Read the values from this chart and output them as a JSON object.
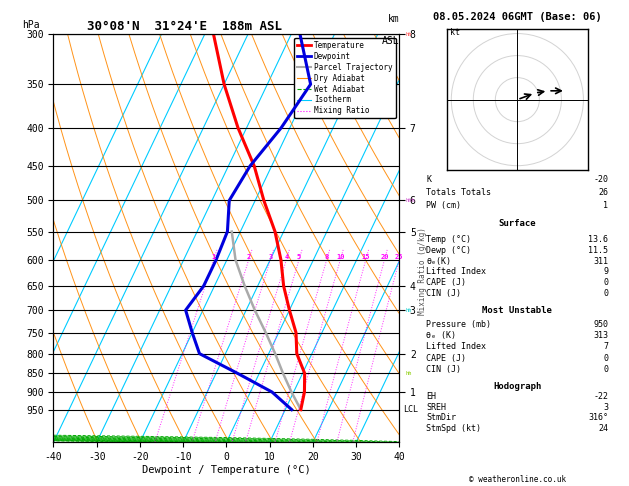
{
  "title": "30°08'N  31°24'E  188m ASL",
  "date_str": "08.05.2024 06GMT (Base: 06)",
  "xlabel": "Dewpoint / Temperature (°C)",
  "ylabel_left": "hPa",
  "pressure_levels": [
    300,
    350,
    400,
    450,
    500,
    550,
    600,
    650,
    700,
    750,
    800,
    850,
    900,
    950
  ],
  "pressure_min": 300,
  "pressure_max": 1050,
  "temp_min": -40,
  "temp_max": 40,
  "temp_data": {
    "pressure": [
      950,
      900,
      850,
      800,
      750,
      700,
      650,
      600,
      550,
      500,
      450,
      400,
      350,
      300
    ],
    "temp": [
      13.6,
      12.5,
      10.5,
      6.5,
      4.0,
      0.0,
      -4.0,
      -7.5,
      -12.0,
      -18.0,
      -24.0,
      -32.0,
      -40.0,
      -48.0
    ]
  },
  "dewpoint_data": {
    "pressure": [
      950,
      900,
      850,
      800,
      750,
      700,
      650,
      600,
      550,
      500,
      450,
      400,
      350,
      300
    ],
    "dewp": [
      11.5,
      5.0,
      -5.0,
      -16.0,
      -20.0,
      -24.0,
      -22.5,
      -22.5,
      -23.0,
      -26.0,
      -25.0,
      -22.0,
      -20.0,
      -28.0
    ]
  },
  "parcel_data": {
    "pressure": [
      950,
      900,
      850,
      800,
      750,
      700,
      650,
      600,
      550
    ],
    "temp": [
      13.6,
      9.5,
      5.5,
      1.5,
      -3.0,
      -8.0,
      -13.0,
      -18.0,
      -22.0
    ]
  },
  "km_labels": [
    [
      300,
      "8"
    ],
    [
      400,
      "7"
    ],
    [
      500,
      "6"
    ],
    [
      550,
      "5"
    ],
    [
      650,
      "4"
    ],
    [
      700,
      "3"
    ],
    [
      800,
      "2"
    ],
    [
      900,
      "1"
    ]
  ],
  "mixing_ratio_labels": [
    "1",
    "2",
    "3",
    "4",
    "5",
    "8",
    "10",
    "15",
    "20",
    "25"
  ],
  "mixing_ratio_values": [
    1,
    2,
    3,
    4,
    5,
    8,
    10,
    15,
    20,
    25
  ],
  "lcl_pressure": 950,
  "colors": {
    "temperature": "#ff0000",
    "dewpoint": "#0000dd",
    "parcel": "#aaaaaa",
    "dry_adiabat": "#ff8800",
    "wet_adiabat": "#00aa00",
    "isotherm": "#00ccff",
    "mixing_ratio": "#ff00ff",
    "background": "#ffffff",
    "grid": "#000000"
  },
  "legend_entries": [
    {
      "label": "Temperature",
      "color": "#ff0000",
      "style": "solid",
      "lw": 2.0
    },
    {
      "label": "Dewpoint",
      "color": "#0000dd",
      "style": "solid",
      "lw": 2.0
    },
    {
      "label": "Parcel Trajectory",
      "color": "#aaaaaa",
      "style": "solid",
      "lw": 1.5
    },
    {
      "label": "Dry Adiabat",
      "color": "#ff8800",
      "style": "solid",
      "lw": 0.8
    },
    {
      "label": "Wet Adiabat",
      "color": "#00aa00",
      "style": "dashed",
      "lw": 0.8
    },
    {
      "label": "Isotherm",
      "color": "#00ccff",
      "style": "solid",
      "lw": 0.8
    },
    {
      "label": "Mixing Ratio",
      "color": "#ff00ff",
      "style": "dotted",
      "lw": 0.8
    }
  ],
  "table_data": {
    "K": "-20",
    "Totals Totals": "26",
    "PW (cm)": "1",
    "Surface_Temp": "13.6",
    "Surface_Dewp": "11.5",
    "Surface_theta_e": "311",
    "Surface_LI": "9",
    "Surface_CAPE": "0",
    "Surface_CIN": "0",
    "MU_Pressure": "950",
    "MU_theta_e": "313",
    "MU_LI": "7",
    "MU_CAPE": "0",
    "MU_CIN": "0",
    "EH": "-22",
    "SREH": "3",
    "StmDir": "316°",
    "StmSpd": "24"
  },
  "hodo_u": [
    0,
    8,
    14,
    22
  ],
  "hodo_v": [
    0,
    3,
    4,
    4
  ]
}
